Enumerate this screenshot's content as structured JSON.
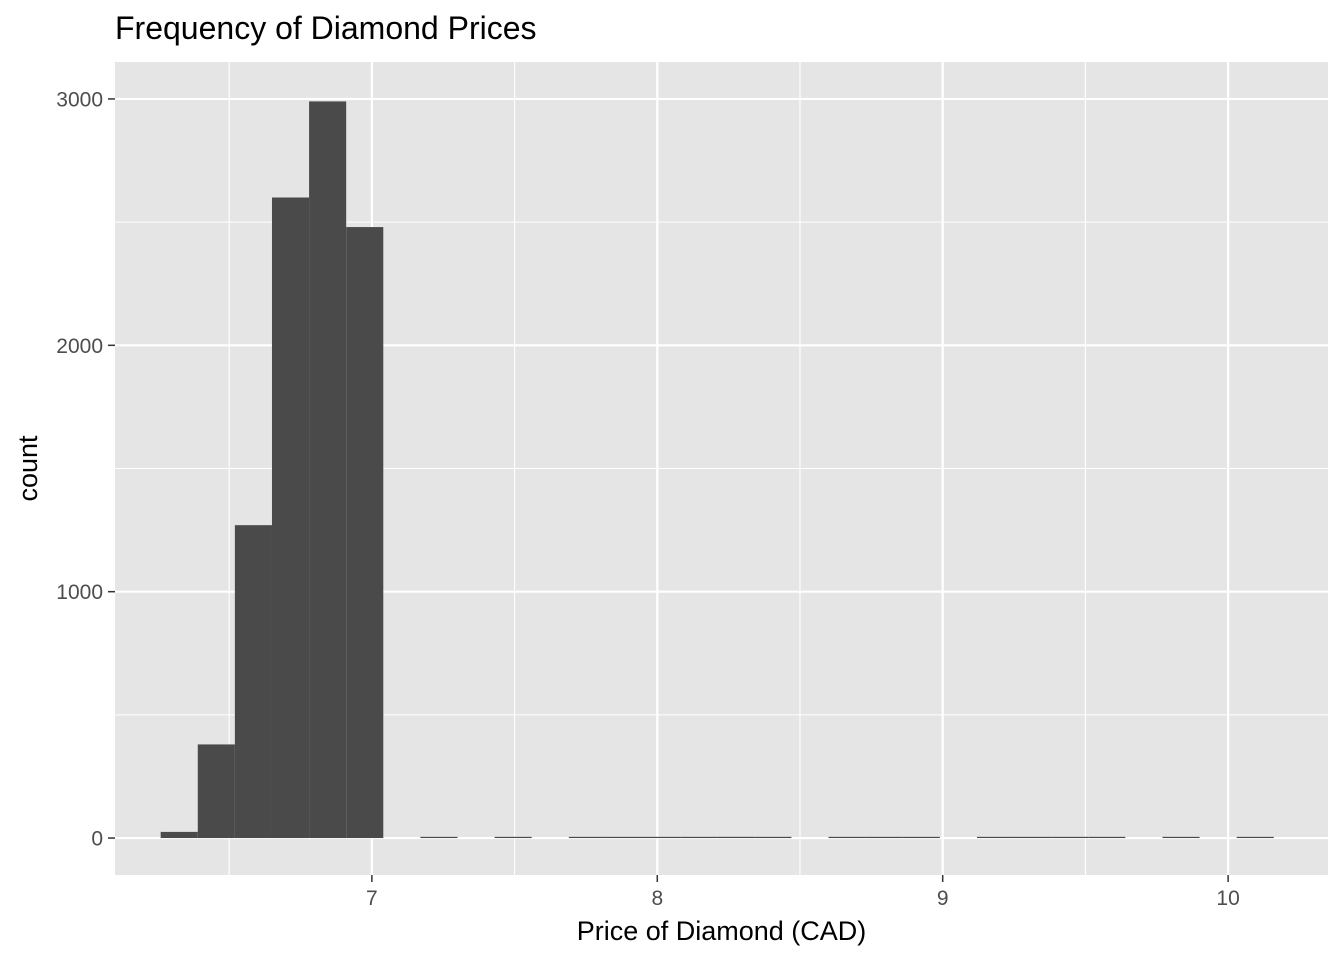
{
  "chart_data": {
    "type": "bar",
    "title": "Frequency of Diamond Prices",
    "xlabel": "Price of Diamond (CAD)",
    "ylabel": "count",
    "xlim": [
      6.1,
      10.35
    ],
    "ylim": [
      -150,
      3150
    ],
    "x_ticks": [
      7,
      8,
      9,
      10
    ],
    "y_ticks": [
      0,
      1000,
      2000,
      3000
    ],
    "bin_width": 0.13,
    "bins": [
      {
        "x": 6.325,
        "count": 25
      },
      {
        "x": 6.455,
        "count": 380
      },
      {
        "x": 6.585,
        "count": 1270
      },
      {
        "x": 6.715,
        "count": 2600
      },
      {
        "x": 6.845,
        "count": 2990
      },
      {
        "x": 6.975,
        "count": 2480
      },
      {
        "x": 7.105,
        "count": 0
      },
      {
        "x": 7.235,
        "count": 3
      },
      {
        "x": 7.365,
        "count": 0
      },
      {
        "x": 7.495,
        "count": 2
      },
      {
        "x": 7.625,
        "count": 0
      },
      {
        "x": 7.755,
        "count": 1
      },
      {
        "x": 7.885,
        "count": 1
      },
      {
        "x": 8.015,
        "count": 2
      },
      {
        "x": 8.145,
        "count": 2
      },
      {
        "x": 8.275,
        "count": 5
      },
      {
        "x": 8.405,
        "count": 2
      },
      {
        "x": 8.535,
        "count": 0
      },
      {
        "x": 8.665,
        "count": 1
      },
      {
        "x": 8.795,
        "count": 1
      },
      {
        "x": 8.925,
        "count": 2
      },
      {
        "x": 9.055,
        "count": 0
      },
      {
        "x": 9.185,
        "count": 1
      },
      {
        "x": 9.315,
        "count": 1
      },
      {
        "x": 9.445,
        "count": 1
      },
      {
        "x": 9.575,
        "count": 1
      },
      {
        "x": 9.705,
        "count": 0
      },
      {
        "x": 9.835,
        "count": 1
      },
      {
        "x": 9.965,
        "count": 0
      },
      {
        "x": 10.095,
        "count": 1
      }
    ],
    "grid": true,
    "colors": {
      "panel": "#e5e5e5",
      "grid": "#ffffff",
      "bar": "#4a4a4a",
      "tick_text": "#4d4d4d",
      "tick_mark": "#333333"
    }
  }
}
